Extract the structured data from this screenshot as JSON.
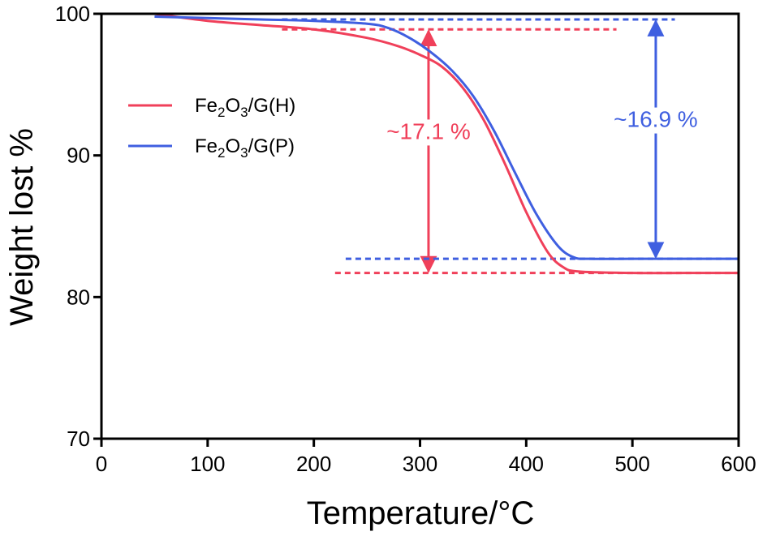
{
  "chart_data": {
    "type": "line",
    "xlabel": "Temperature/°C",
    "ylabel": "Weight lost %",
    "xlim": [
      0,
      600
    ],
    "ylim": [
      70,
      100
    ],
    "xticks": [
      0,
      100,
      200,
      300,
      400,
      500,
      600
    ],
    "yticks": [
      70,
      80,
      90,
      100
    ],
    "grid": false,
    "legend_position": "left",
    "colors": {
      "H": "#f0405a",
      "P": "#3f5fe0"
    },
    "series": [
      {
        "key": "H",
        "name_parts": {
          "pre": "Fe",
          "sub1": "2",
          "mid": "O",
          "sub2": "3",
          "post": "/G(H)"
        },
        "x": [
          50,
          100,
          150,
          200,
          250,
          280,
          300,
          320,
          340,
          360,
          380,
          400,
          420,
          435,
          450,
          500,
          550,
          600
        ],
        "y": [
          100,
          99.5,
          99.2,
          98.9,
          98.3,
          97.7,
          97.1,
          96.3,
          94.8,
          92.5,
          89.4,
          86.0,
          83.2,
          82.1,
          81.8,
          81.7,
          81.7,
          81.7
        ]
      },
      {
        "key": "P",
        "name_parts": {
          "pre": "Fe",
          "sub1": "2",
          "mid": "O",
          "sub2": "3",
          "post": "/G(P)"
        },
        "x": [
          50,
          100,
          150,
          200,
          250,
          270,
          290,
          310,
          330,
          350,
          370,
          390,
          410,
          430,
          445,
          460,
          500,
          550,
          600
        ],
        "y": [
          99.8,
          99.7,
          99.6,
          99.5,
          99.3,
          99.0,
          98.3,
          97.3,
          96.0,
          94.2,
          91.7,
          88.7,
          85.8,
          83.6,
          82.8,
          82.7,
          82.7,
          82.7,
          82.7
        ]
      }
    ],
    "annotations": [
      {
        "key": "H",
        "text": "~17.1 %",
        "top": 98.9,
        "bottom": 81.7,
        "x": 308,
        "line_top_x": [
          170,
          485
        ],
        "line_bottom_x": [
          220,
          600
        ]
      },
      {
        "key": "P",
        "text": "~16.9 %",
        "top": 99.6,
        "bottom": 82.7,
        "x": 522,
        "line_top_x": [
          170,
          540
        ],
        "line_bottom_x": [
          230,
          600
        ]
      }
    ]
  }
}
